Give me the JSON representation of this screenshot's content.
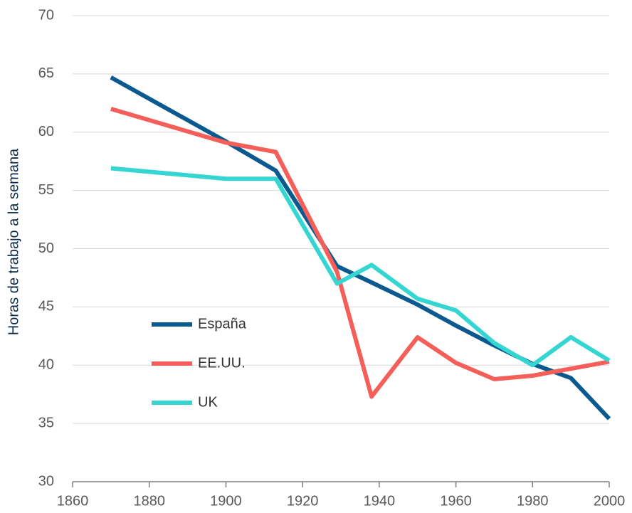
{
  "chart_data": {
    "type": "line",
    "y_label": "Horas de trabajo a la semana",
    "x": [
      1870,
      1900,
      1913,
      1929,
      1938,
      1950,
      1960,
      1970,
      1980,
      1990,
      2000
    ],
    "series": [
      {
        "name": "España",
        "color": "#0b5a8f",
        "values": [
          64.7,
          59.2,
          56.7,
          48.5,
          47.1,
          45.2,
          43.4,
          41.7,
          40.1,
          38.9,
          35.4
        ]
      },
      {
        "name": "EE.UU.",
        "color": "#f45f5a",
        "values": [
          62.0,
          59.1,
          58.3,
          48.0,
          37.3,
          42.4,
          40.2,
          38.8,
          39.1,
          39.7,
          40.3
        ]
      },
      {
        "name": "UK",
        "color": "#35d6d2",
        "values": [
          56.9,
          56.0,
          56.0,
          47.0,
          48.6,
          45.7,
          44.7,
          41.9,
          40.0,
          42.4,
          40.4
        ]
      }
    ],
    "xlim": [
      1860,
      2000
    ],
    "xticks": [
      1860,
      1880,
      1900,
      1920,
      1940,
      1960,
      1980,
      2000
    ],
    "ylim": [
      30,
      70
    ],
    "yticks": [
      30,
      35,
      40,
      45,
      50,
      55,
      60,
      65,
      70
    ],
    "grid": true
  }
}
